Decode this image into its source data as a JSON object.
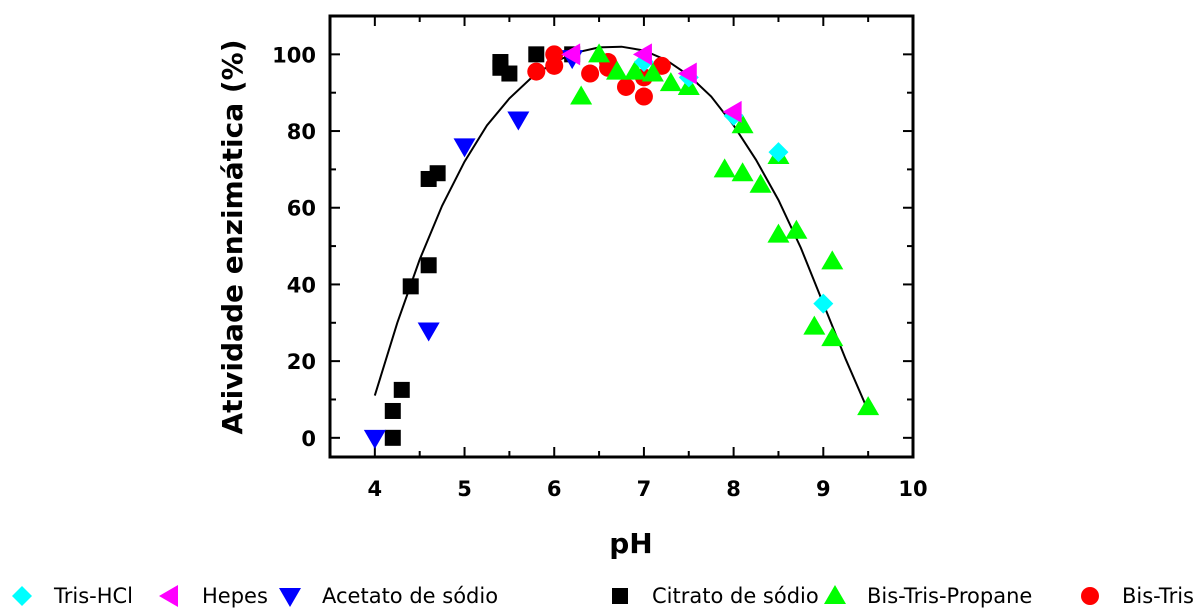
{
  "chart_data": {
    "type": "scatter",
    "title": "",
    "xlabel": "pH",
    "ylabel": "Atividade enzimática (%)",
    "xlim": [
      3.5,
      10
    ],
    "ylim": [
      -5,
      110
    ],
    "x_ticks": [
      4,
      5,
      6,
      7,
      8,
      9,
      10
    ],
    "y_ticks": [
      0,
      20,
      40,
      60,
      80,
      100
    ],
    "grid": false,
    "legend_position": "bottom",
    "series": [
      {
        "name": "Tris-HCl",
        "marker": "diamond",
        "color": "#00ffff",
        "points": [
          [
            7.0,
            98
          ],
          [
            7.5,
            94
          ],
          [
            8.0,
            84
          ],
          [
            8.5,
            74.5
          ],
          [
            9.0,
            35
          ]
        ]
      },
      {
        "name": "Hepes",
        "marker": "triangle-left",
        "color": "#ff00ff",
        "points": [
          [
            6.2,
            100
          ],
          [
            7.0,
            100
          ],
          [
            7.5,
            95
          ],
          [
            8.0,
            85
          ]
        ]
      },
      {
        "name": "Acetato de sódio",
        "marker": "triangle-down",
        "color": "#0000ff",
        "points": [
          [
            4.0,
            0
          ],
          [
            4.6,
            28
          ],
          [
            5.0,
            76
          ],
          [
            5.6,
            83
          ],
          [
            6.2,
            99
          ]
        ]
      },
      {
        "name": "Citrato de sódio",
        "marker": "square",
        "color": "#000000",
        "points": [
          [
            4.2,
            7
          ],
          [
            4.2,
            0
          ],
          [
            4.3,
            12.5
          ],
          [
            4.4,
            39.5
          ],
          [
            4.6,
            45
          ],
          [
            4.6,
            67.5
          ],
          [
            4.7,
            69
          ],
          [
            5.4,
            98
          ],
          [
            5.4,
            96.5
          ],
          [
            5.5,
            95
          ],
          [
            5.8,
            100
          ],
          [
            6.2,
            100
          ]
        ]
      },
      {
        "name": "Bis-Tris-Propane",
        "marker": "triangle-up",
        "color": "#00ff00",
        "points": [
          [
            6.3,
            89
          ],
          [
            6.5,
            100
          ],
          [
            6.7,
            95.5
          ],
          [
            6.9,
            95.5
          ],
          [
            7.1,
            95
          ],
          [
            7.3,
            92.5
          ],
          [
            7.5,
            91.5
          ],
          [
            7.9,
            70
          ],
          [
            8.1,
            69
          ],
          [
            8.1,
            81.5
          ],
          [
            8.3,
            66
          ],
          [
            8.5,
            53
          ],
          [
            8.5,
            73.5
          ],
          [
            8.7,
            54
          ],
          [
            8.9,
            29
          ],
          [
            9.1,
            26
          ],
          [
            9.1,
            46
          ],
          [
            9.5,
            8
          ]
        ]
      },
      {
        "name": "Bis-Tris",
        "marker": "circle",
        "color": "#ff0000",
        "points": [
          [
            5.8,
            95.5
          ],
          [
            6.0,
            97
          ],
          [
            6.0,
            100
          ],
          [
            6.4,
            95
          ],
          [
            6.6,
            98
          ],
          [
            6.6,
            96.5
          ],
          [
            6.8,
            91.5
          ],
          [
            7.0,
            89
          ],
          [
            7.0,
            94
          ],
          [
            7.2,
            97
          ]
        ]
      }
    ],
    "fit_curve": {
      "type": "line",
      "color": "#000000",
      "points": [
        [
          4.0,
          11
        ],
        [
          4.25,
          30
        ],
        [
          4.5,
          46.5
        ],
        [
          4.75,
          60.5
        ],
        [
          5.0,
          72
        ],
        [
          5.25,
          81.5
        ],
        [
          5.5,
          88.5
        ],
        [
          5.75,
          94
        ],
        [
          6.0,
          98
        ],
        [
          6.25,
          100.5
        ],
        [
          6.5,
          101.8
        ],
        [
          6.75,
          102
        ],
        [
          7.0,
          101
        ],
        [
          7.25,
          98.5
        ],
        [
          7.5,
          94.5
        ],
        [
          7.75,
          89
        ],
        [
          8.0,
          81.5
        ],
        [
          8.25,
          72.5
        ],
        [
          8.5,
          62
        ],
        [
          8.75,
          49.5
        ],
        [
          9.0,
          35
        ],
        [
          9.25,
          20.5
        ],
        [
          9.5,
          7
        ]
      ]
    }
  }
}
